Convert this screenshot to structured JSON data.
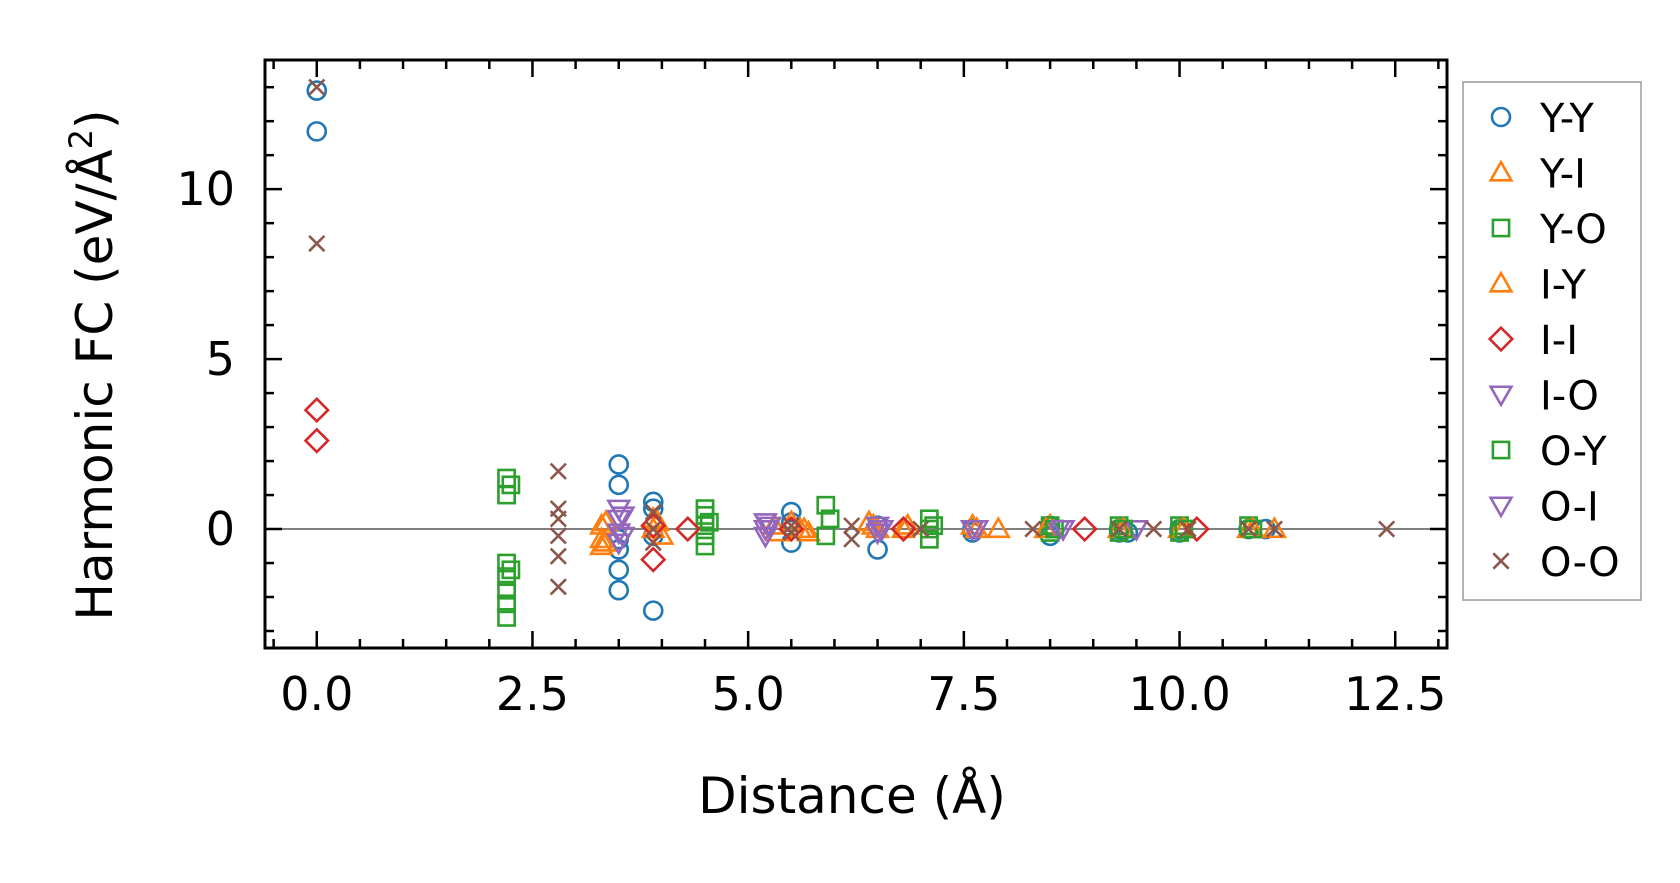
{
  "chart_data": {
    "type": "scatter",
    "xlabel": "Distance (Å)",
    "ylabel_prefix": "Harmonic FC (eV/Å",
    "ylabel_sup": "2",
    "ylabel_suffix": ")",
    "xlim": [
      -0.6,
      13.1
    ],
    "ylim": [
      -3.5,
      13.8
    ],
    "x_ticks": [
      0.0,
      2.5,
      5.0,
      7.5,
      10.0,
      12.5
    ],
    "x_tick_labels": [
      "0.0",
      "2.5",
      "5.0",
      "7.5",
      "10.0",
      "12.5"
    ],
    "y_ticks": [
      0,
      5,
      10
    ],
    "y_tick_labels": [
      "0",
      "5",
      "10"
    ],
    "zero_line": true,
    "legend_position": "right, outside axes",
    "series": [
      {
        "name": "Y-Y",
        "marker": "circle",
        "color": "#1f77b4",
        "points": [
          [
            0,
            12.9
          ],
          [
            0,
            11.7
          ],
          [
            3.5,
            1.9
          ],
          [
            3.5,
            1.3
          ],
          [
            3.5,
            -0.3
          ],
          [
            3.5,
            -0.6
          ],
          [
            3.5,
            -1.2
          ],
          [
            3.5,
            -1.8
          ],
          [
            3.9,
            0.8
          ],
          [
            3.9,
            0.6
          ],
          [
            3.9,
            -0.2
          ],
          [
            3.9,
            -2.4
          ],
          [
            5.5,
            0.5
          ],
          [
            5.5,
            0.2
          ],
          [
            5.5,
            -0.4
          ],
          [
            6.5,
            -0.6
          ],
          [
            6.5,
            0.1
          ],
          [
            7.6,
            0.0
          ],
          [
            7.6,
            -0.1
          ],
          [
            8.5,
            -0.2
          ],
          [
            8.5,
            0.1
          ],
          [
            9.3,
            0.0
          ],
          [
            9.3,
            -0.1
          ],
          [
            9.4,
            -0.1
          ],
          [
            10.0,
            0.0
          ],
          [
            10.0,
            -0.1
          ],
          [
            10.8,
            0.0
          ],
          [
            11.0,
            0.0
          ]
        ]
      },
      {
        "name": "Y-I",
        "marker": "triangle-up",
        "color": "#ff7f0e",
        "points": [
          [
            3.3,
            0.1
          ],
          [
            3.3,
            -0.3
          ],
          [
            3.3,
            -0.5
          ],
          [
            3.9,
            0.3
          ],
          [
            3.9,
            0.0
          ],
          [
            4.0,
            -0.2
          ],
          [
            5.3,
            0.1
          ],
          [
            5.5,
            0.2
          ],
          [
            5.6,
            0.0
          ],
          [
            5.7,
            -0.1
          ],
          [
            6.4,
            0.2
          ],
          [
            6.5,
            0.0
          ],
          [
            6.8,
            0.0
          ],
          [
            7.6,
            0.1
          ],
          [
            7.9,
            0.0
          ],
          [
            8.5,
            0.1
          ],
          [
            9.3,
            0.0
          ],
          [
            10.0,
            0.0
          ],
          [
            10.8,
            0.0
          ],
          [
            11.1,
            0.0
          ]
        ]
      },
      {
        "name": "Y-O",
        "marker": "square",
        "color": "#2ca02c",
        "points": [
          [
            2.2,
            1.5
          ],
          [
            2.2,
            1.0
          ],
          [
            2.2,
            -1.0
          ],
          [
            2.2,
            -1.4
          ],
          [
            2.2,
            -1.8
          ],
          [
            2.2,
            -2.2
          ],
          [
            2.2,
            -2.6
          ],
          [
            4.5,
            0.6
          ],
          [
            4.5,
            0.4
          ],
          [
            4.5,
            0.1
          ],
          [
            4.5,
            -0.2
          ],
          [
            4.5,
            -0.5
          ],
          [
            5.9,
            0.7
          ],
          [
            5.9,
            -0.2
          ],
          [
            7.1,
            0.3
          ],
          [
            7.1,
            0.0
          ],
          [
            7.1,
            -0.3
          ],
          [
            8.5,
            0.1
          ],
          [
            8.5,
            -0.1
          ],
          [
            9.3,
            0.1
          ],
          [
            9.3,
            -0.1
          ],
          [
            10.0,
            0.1
          ],
          [
            10.0,
            -0.1
          ],
          [
            10.8,
            0.1
          ]
        ]
      },
      {
        "name": "I-Y",
        "marker": "triangle-up",
        "color": "#ff7f0e",
        "points": [
          [
            3.35,
            0.2
          ],
          [
            3.35,
            -0.4
          ],
          [
            3.95,
            0.2
          ],
          [
            5.35,
            -0.1
          ],
          [
            5.65,
            0.0
          ],
          [
            6.45,
            0.1
          ],
          [
            6.85,
            0.1
          ],
          [
            7.65,
            0.0
          ],
          [
            8.45,
            0.0
          ],
          [
            9.35,
            0.0
          ],
          [
            10.05,
            0.0
          ],
          [
            10.85,
            0.0
          ]
        ]
      },
      {
        "name": "I-I",
        "marker": "diamond",
        "color": "#d62728",
        "points": [
          [
            0,
            3.5
          ],
          [
            0,
            2.6
          ],
          [
            3.9,
            0.1
          ],
          [
            3.9,
            -0.9
          ],
          [
            4.3,
            0.0
          ],
          [
            5.5,
            0.0
          ],
          [
            6.8,
            0.0
          ],
          [
            8.9,
            0.0
          ],
          [
            10.2,
            0.0
          ]
        ]
      },
      {
        "name": "I-O",
        "marker": "triangle-down",
        "color": "#9467bd",
        "points": [
          [
            3.5,
            0.6
          ],
          [
            3.5,
            0.3
          ],
          [
            3.5,
            -0.1
          ],
          [
            3.5,
            -0.4
          ],
          [
            5.2,
            0.2
          ],
          [
            5.2,
            0.0
          ],
          [
            5.2,
            -0.2
          ],
          [
            6.5,
            0.1
          ],
          [
            6.5,
            -0.1
          ],
          [
            7.6,
            0.0
          ],
          [
            8.6,
            0.0
          ],
          [
            9.5,
            0.0
          ]
        ]
      },
      {
        "name": "O-Y",
        "marker": "square",
        "color": "#2ca02c",
        "points": [
          [
            2.25,
            1.3
          ],
          [
            2.25,
            -1.2
          ],
          [
            4.55,
            0.2
          ],
          [
            5.95,
            0.3
          ],
          [
            7.15,
            0.1
          ],
          [
            8.55,
            0.0
          ],
          [
            9.35,
            0.0
          ],
          [
            10.05,
            0.0
          ],
          [
            10.85,
            0.0
          ]
        ]
      },
      {
        "name": "O-I",
        "marker": "triangle-down",
        "color": "#9467bd",
        "points": [
          [
            3.55,
            0.4
          ],
          [
            3.55,
            -0.2
          ],
          [
            5.25,
            0.1
          ],
          [
            6.55,
            0.0
          ],
          [
            7.65,
            0.0
          ],
          [
            8.65,
            0.0
          ]
        ]
      },
      {
        "name": "O-O",
        "marker": "x",
        "color": "#8c564b",
        "points": [
          [
            0,
            13.0
          ],
          [
            0,
            8.4
          ],
          [
            2.8,
            1.7
          ],
          [
            2.8,
            0.6
          ],
          [
            2.8,
            0.3
          ],
          [
            2.8,
            -0.2
          ],
          [
            2.8,
            -0.8
          ],
          [
            2.8,
            -1.7
          ],
          [
            3.9,
            0.5
          ],
          [
            3.9,
            0.0
          ],
          [
            3.9,
            -0.4
          ],
          [
            5.5,
            0.1
          ],
          [
            5.5,
            -0.1
          ],
          [
            6.2,
            0.1
          ],
          [
            6.2,
            -0.3
          ],
          [
            7.0,
            0.0
          ],
          [
            8.3,
            0.0
          ],
          [
            9.3,
            0.0
          ],
          [
            9.7,
            0.0
          ],
          [
            10.1,
            0.0
          ],
          [
            10.8,
            0.0
          ],
          [
            11.1,
            0.0
          ],
          [
            12.4,
            0.0
          ]
        ]
      }
    ]
  }
}
